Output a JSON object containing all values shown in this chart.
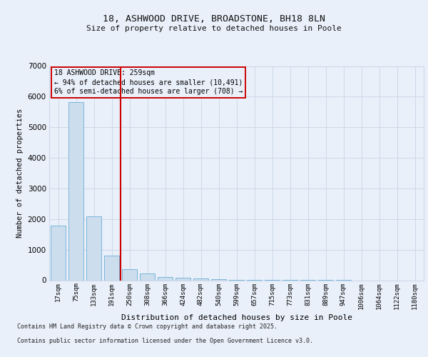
{
  "title1": "18, ASHWOOD DRIVE, BROADSTONE, BH18 8LN",
  "title2": "Size of property relative to detached houses in Poole",
  "xlabel": "Distribution of detached houses by size in Poole",
  "ylabel": "Number of detached properties",
  "categories": [
    "17sqm",
    "75sqm",
    "133sqm",
    "191sqm",
    "250sqm",
    "308sqm",
    "366sqm",
    "424sqm",
    "482sqm",
    "540sqm",
    "599sqm",
    "657sqm",
    "715sqm",
    "773sqm",
    "831sqm",
    "889sqm",
    "947sqm",
    "1006sqm",
    "1064sqm",
    "1122sqm",
    "1180sqm"
  ],
  "values": [
    1780,
    5820,
    2090,
    810,
    370,
    215,
    115,
    80,
    60,
    45,
    20,
    10,
    5,
    3,
    2,
    1,
    1,
    0,
    0,
    0,
    0
  ],
  "bar_color": "#ccdded",
  "bar_edge_color": "#6aaed6",
  "grid_color": "#cdd9e8",
  "background_color": "#eaf0fa",
  "vline_color": "#cc0000",
  "vline_x": 3.5,
  "annotation_text": "18 ASHWOOD DRIVE: 259sqm\n← 94% of detached houses are smaller (10,491)\n6% of semi-detached houses are larger (708) →",
  "annotation_box_color": "#cc0000",
  "ylim": [
    0,
    7000
  ],
  "yticks": [
    0,
    1000,
    2000,
    3000,
    4000,
    5000,
    6000,
    7000
  ],
  "footer1": "Contains HM Land Registry data © Crown copyright and database right 2025.",
  "footer2": "Contains public sector information licensed under the Open Government Licence v3.0."
}
